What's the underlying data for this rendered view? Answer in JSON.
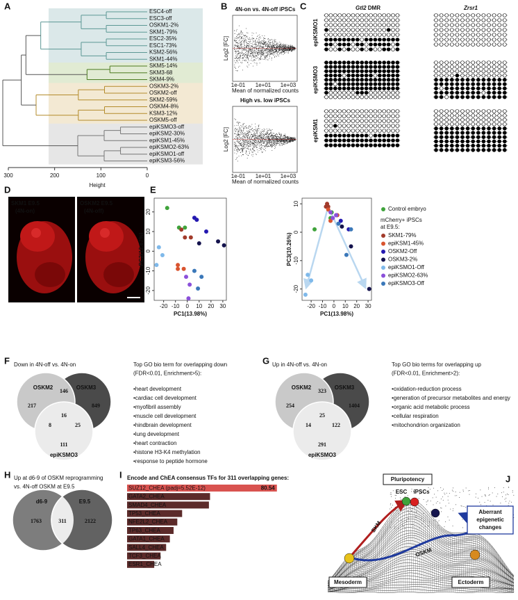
{
  "panels": {
    "A": {
      "label": "A",
      "xlabel": "Height",
      "xticks": [
        300,
        200,
        100,
        0
      ],
      "xlim": [
        300,
        0
      ],
      "groups": [
        {
          "color": "#5b9794",
          "fill": "#dbe8e9",
          "leaves": [
            "ESC4-off",
            "ESC3-off",
            "OSKM1-2%",
            "SKM1-79%",
            "ESC2-35%",
            "ESC1-73%",
            "KSM2-56%",
            "SKM1-44%"
          ]
        },
        {
          "color": "#4a7a1e",
          "fill": "#e1ebd3",
          "leaves": [
            "SKM5-14%",
            "SKM3-68",
            "SKM4-9%"
          ]
        },
        {
          "color": "#b38b2b",
          "fill": "#f3e9d3",
          "leaves": [
            "OSKM3-2%",
            "OSKM2-off",
            "SKM2-59%",
            "OSKM4-8%",
            "KSM3-12%",
            "OSKM5-off"
          ]
        },
        {
          "color": "#777777",
          "fill": "#e6e6e6",
          "leaves": [
            "epiKSMO3-off",
            "epiKSM2-30%",
            "epiKSM1-45%",
            "epiKSMO2-63%",
            "epiKSMO1-off",
            "epiKSM3-56%"
          ]
        }
      ]
    },
    "B": {
      "label": "B",
      "plots": [
        {
          "title": "4N-on vs. 4N-off iPSCs",
          "ylabel": "Log2 [FC]",
          "xlabel": "Mean of normalized counts",
          "xticks": [
            "1e-01",
            "1e+01",
            "1e+03"
          ]
        },
        {
          "title": "High vs. low iPSCs",
          "ylabel": "Log2 [FC]",
          "xlabel": "Mean of normalized counts",
          "xticks": [
            "1e-01",
            "1e+01",
            "1e+03"
          ]
        }
      ]
    },
    "C": {
      "label": "C",
      "loci": [
        {
          "gene": "Gtl2",
          "suffix": "DMR"
        },
        {
          "gene": "Zrsr1"
        }
      ],
      "blocks": [
        {
          "name": "epiKSMO1",
          "loci": [
            [
              "00000000000000000",
              "00000000000000000",
              "00000000000000000",
              "10000000000000100",
              "00000000000000000",
              "11111111011111111",
              "11011101101111101",
              "10010100101001101"
            ],
            [
              "00000000000000",
              "00000000000000",
              "00000000000000",
              "00000000000000",
              "00000000000000",
              "00000000000000",
              "00000000000000"
            ]
          ]
        },
        {
          "name": "epiKSMO3",
          "loci": [
            [
              "11111111111111111",
              "11111111111111111",
              "11111111111111111",
              "11110111111011111",
              "11111111111111111",
              "11011111111111111",
              "11111111111111111",
              "10000001110000000",
              "00000000000000000"
            ],
            [
              "00000000000000",
              "00000000000000",
              "00000000000000",
              "00001000000000",
              "11111111111111",
              "11111111111111",
              "10111111111111",
              "11111111101111",
              "11011111111111"
            ]
          ]
        },
        {
          "name": "epiKSM1",
          "loci": [
            [
              "00000000000000000",
              "00000000000000000",
              "00000000000000000",
              "00100000000000000",
              "00000000000000000",
              "11111111110111111",
              "11111111111111111",
              "11111111111111111"
            ],
            [
              "00000000000000",
              "00000000000000",
              "00000000000000",
              "00000000000000",
              "11111111111111",
              "11111111111111",
              "11111111111111",
              "11111111111111",
              "11111111111111",
              "11111111111111"
            ]
          ]
        }
      ]
    },
    "D": {
      "label": "D",
      "images": [
        {
          "line1": "SKM1 E9.5",
          "line2": "(4N-on)"
        },
        {
          "line1": "OSKM2 E9.5",
          "line2": "(4N-off)"
        }
      ]
    },
    "E": {
      "label": "E",
      "series": [
        {
          "name": "Control embryo",
          "color": "#3fa33b"
        },
        {
          "name": "SKM1-79%",
          "color": "#a23b2b"
        },
        {
          "name": "epiKSM1-45%",
          "color": "#d9542f"
        },
        {
          "name": "OSKM2-Off",
          "color": "#2419b0"
        },
        {
          "name": "OSKM3-2%",
          "color": "#14134d"
        },
        {
          "name": "epiKSMO1-Off",
          "color": "#7fb9ea"
        },
        {
          "name": "epiKSMO2-63%",
          "color": "#8b50da"
        },
        {
          "name": "epiKSMO3-Off",
          "color": "#3b78b9"
        }
      ],
      "legend_header": [
        "mCherry+ iPSCs",
        "at E9.5:"
      ],
      "plots": [
        {
          "xlabel": "PC1(13.98%)",
          "ylabel": "PC2(12.67%)",
          "xlim": [
            -28,
            33
          ],
          "ylim": [
            -25,
            27
          ],
          "xticks": [
            -20,
            -10,
            0,
            10,
            20,
            30
          ],
          "yticks": [
            -20,
            -10,
            0,
            10,
            20
          ],
          "points": [
            {
              "x": [
                -17,
                -7,
                -2
              ],
              "y": [
                22,
                12,
                12
              ]
            },
            {
              "x": [
                -5,
                -2,
                3
              ],
              "y": [
                11,
                7,
                7
              ]
            },
            {
              "x": [
                -8,
                -8,
                -3
              ],
              "y": [
                -7,
                -9,
                -9
              ]
            },
            {
              "x": [
                6,
                8,
                16
              ],
              "y": [
                17,
                16,
                10
              ]
            },
            {
              "x": [
                10,
                26,
                31
              ],
              "y": [
                4,
                5,
                3
              ]
            },
            {
              "x": [
                -24,
                -21,
                -26
              ],
              "y": [
                2,
                -2,
                -7
              ]
            },
            {
              "x": [
                -1,
                2,
                1
              ],
              "y": [
                -13,
                -17,
                -24
              ]
            },
            {
              "x": [
                6,
                12,
                9
              ],
              "y": [
                -10,
                -13,
                -19
              ]
            }
          ]
        },
        {
          "xlabel": "PC1(13.98%)",
          "ylabel": "PC3(10.26%)",
          "xlim": [
            -28,
            33
          ],
          "ylim": [
            -24,
            12
          ],
          "xticks": [
            -20,
            -10,
            0,
            10,
            20,
            30
          ],
          "yticks": [
            -20,
            -10,
            0,
            10
          ],
          "points": [
            {
              "x": [
                -17,
                -2,
                -3
              ],
              "y": [
                1,
                7,
                5
              ]
            },
            {
              "x": [
                -6,
                -5,
                -7
              ],
              "y": [
                10,
                9,
                9
              ]
            },
            {
              "x": [
                -5,
                -3,
                3
              ],
              "y": [
                8,
                4,
                6
              ]
            },
            {
              "x": [
                2,
                6,
                13
              ],
              "y": [
                6,
                4,
                1
              ]
            },
            {
              "x": [
                7,
                15,
                31
              ],
              "y": [
                2,
                -5,
                -20
              ]
            },
            {
              "x": [
                -23,
                -20,
                -25
              ],
              "y": [
                -15,
                -17,
                -22
              ]
            },
            {
              "x": [
                -3,
                2,
                -1
              ],
              "y": [
                7,
                6,
                5
              ]
            },
            {
              "x": [
                4,
                11,
                15
              ],
              "y": [
                3,
                -8,
                1
              ]
            }
          ]
        }
      ]
    },
    "F": {
      "label": "F",
      "title": "Down in 4N-off vs. 4N-on",
      "sets": [
        "OSKM2",
        "OSKM3",
        "epiKSMO3"
      ],
      "regions": [
        217,
        146,
        849,
        8,
        16,
        25,
        111
      ],
      "go_title": [
        "Top GO bio term for overlapping down",
        "(FDR<0.01, Enrichment>5):"
      ],
      "go_terms": [
        "•heart development",
        "•cardiac cell development",
        "•myofibril assembly",
        "•muscle cell development",
        "•hindbrain development",
        "•lung development",
        "•heart contraction",
        "•histone H3-K4 methylation",
        "•response to peptide hormone"
      ]
    },
    "G": {
      "label": "G",
      "title": "Up in 4N-off vs. 4N-on",
      "sets": [
        "OSKM2",
        "OSKM3",
        "epiKSMO3"
      ],
      "regions": [
        254,
        323,
        1404,
        14,
        25,
        122,
        291
      ],
      "go_title": [
        "Top GO bio terms for overlapping up",
        "(FDR<0.01, Enrichment>2):"
      ],
      "go_terms": [
        "•oxidation-reduction process",
        "•generation of precursor metabolites and energy",
        "•organic acid metabolic process",
        "•cellular respiration",
        "•mitochondrion organization"
      ]
    },
    "H": {
      "label": "H",
      "title": [
        "Up at d6-9 of OSKM reprogramming",
        "vs. 4N-off OSKM at E9.5"
      ],
      "sets": [
        "d6-9",
        "E9.5"
      ],
      "regions": [
        1763,
        311,
        2122
      ]
    },
    "I": {
      "label": "I",
      "type": "bar",
      "title": "Encode and ChEA consensus TFs for 311 overlapping genes:",
      "categories": [
        "SUZ12_CHEA (padj=5.52E-12)",
        "GATA2_CHEA",
        "SMAD4_CHEA",
        "TP53_CHEA",
        "NFE2L2_CHEA",
        "TP63_CHEA",
        "GATA1_CHEA",
        "SALL4_CHEA",
        "TCF3_CHEA",
        "ESR1_CHEA"
      ],
      "values": [
        80.54,
        44.6,
        44,
        29.6,
        27,
        25,
        23,
        21,
        18,
        14.6
      ],
      "colors": [
        "#d95350",
        "#5c2b2a",
        "#5c2b2a",
        "#5c2b2a",
        "#5c2b2a",
        "#5c2b2a",
        "#5c2b2a",
        "#5c2b2a",
        "#5c2b2a",
        "#5c2b2a"
      ],
      "xlim": [
        0,
        81
      ]
    },
    "J": {
      "label": "J",
      "pluripotency": "Pluripotency",
      "esc": "ESC",
      "ipsc": "iPSCs",
      "skm": "SKM",
      "oskm": "OSKM",
      "aberrant": [
        "Aberrant",
        "epigenetic",
        "changes"
      ],
      "mesoderm": "Mesoderm",
      "ectoderm": "Ectoderm"
    }
  }
}
